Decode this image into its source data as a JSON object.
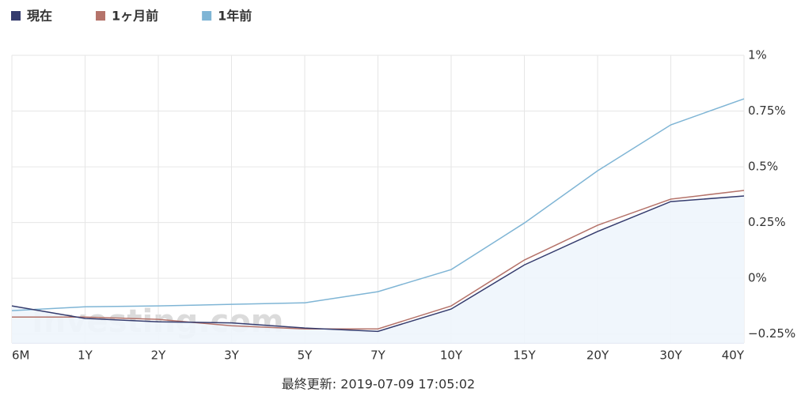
{
  "chart_data": {
    "type": "line",
    "categories": [
      "6M",
      "1Y",
      "2Y",
      "3Y",
      "5Y",
      "7Y",
      "10Y",
      "15Y",
      "20Y",
      "30Y",
      "40Y"
    ],
    "series": [
      {
        "name": "現在",
        "color": "#353c6e",
        "fill": "#eef5fc",
        "values": [
          -0.124,
          -0.18,
          -0.195,
          -0.2,
          -0.223,
          -0.238,
          -0.138,
          0.06,
          0.21,
          0.344,
          0.369
        ]
      },
      {
        "name": "1ヶ月前",
        "color": "#b5736a",
        "values": [
          -0.174,
          -0.174,
          -0.184,
          -0.213,
          -0.227,
          -0.227,
          -0.124,
          0.082,
          0.238,
          0.355,
          0.394
        ]
      },
      {
        "name": "1年前",
        "color": "#7fb5d5",
        "values": [
          -0.145,
          -0.128,
          -0.124,
          -0.117,
          -0.11,
          -0.06,
          0.039,
          0.248,
          0.482,
          0.688,
          0.805
        ]
      }
    ],
    "ylim": [
      -0.29,
      1
    ],
    "yticks": [
      {
        "value": 1,
        "label": "1%"
      },
      {
        "value": 0.75,
        "label": "0.75%"
      },
      {
        "value": 0.5,
        "label": "0.5%"
      },
      {
        "value": 0.25,
        "label": "0.25%"
      },
      {
        "value": 0,
        "label": "0%"
      },
      {
        "value": -0.25,
        "label": "−0.25%"
      }
    ],
    "grid": true,
    "watermark": "Investing.com",
    "footer": "最終更新: 2019-07-09 17:05:02"
  }
}
